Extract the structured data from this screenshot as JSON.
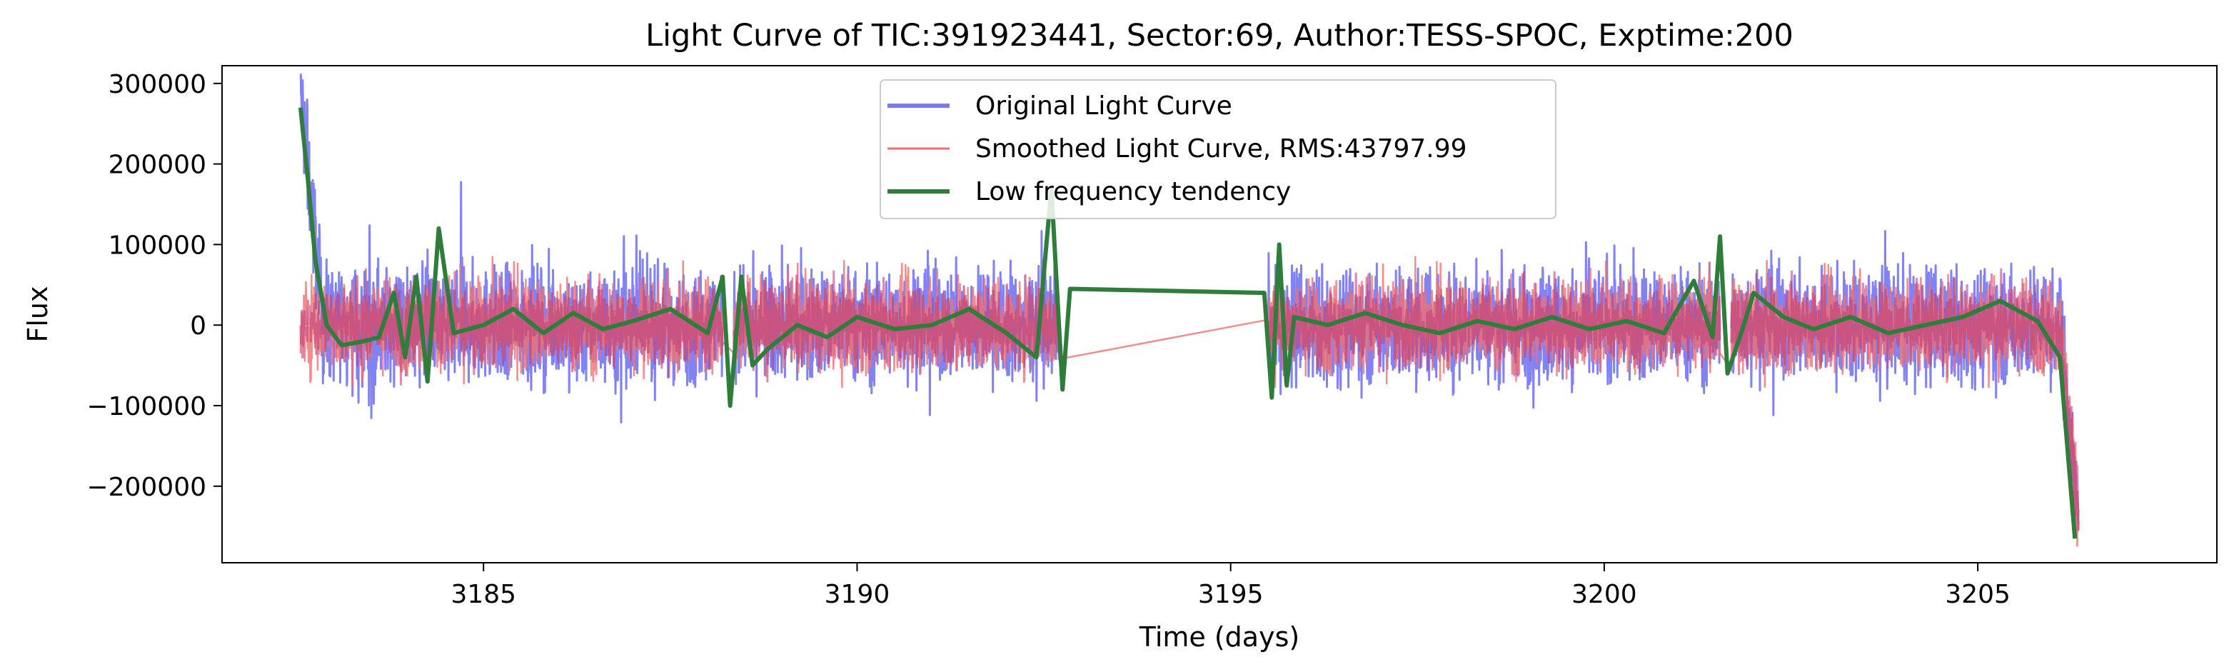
{
  "chart_data": {
    "type": "line",
    "title": "Light Curve of TIC:391923441, Sector:69, Author:TESS-SPOC, Exptime:200",
    "xlabel": "Time (days)",
    "ylabel": "Flux",
    "xlim": [
      3181.5,
      3208.2
    ],
    "ylim": [
      -295000,
      322000
    ],
    "x_ticks": [
      3185,
      3190,
      3195,
      3200,
      3205
    ],
    "x_tick_labels": [
      "3185",
      "3190",
      "3195",
      "3200",
      "3205"
    ],
    "y_ticks": [
      300000,
      200000,
      100000,
      0,
      -100000,
      -200000
    ],
    "y_tick_labels": [
      "300000",
      "200000",
      "100000",
      "0",
      "−100000",
      "−200000"
    ],
    "grid": false,
    "legend_position": "top-center",
    "segments": [
      {
        "start": 3182.55,
        "end": 3188.2
      },
      {
        "start": 3188.35,
        "end": 3192.7
      },
      {
        "start": 3195.5,
        "end": 3201.55
      },
      {
        "start": 3201.7,
        "end": 3206.35
      }
    ],
    "series": [
      {
        "name": "Original Light Curve",
        "color": "#7b7bf2",
        "style": "dense noisy line, alpha 0.5",
        "amplitude": 80000,
        "start_value": 290000,
        "end_value": -255000
      },
      {
        "name": "Smoothed Light Curve, RMS:43797.99",
        "color": "#f07070",
        "style": "thin line, alpha 0.5",
        "amplitude": 70000,
        "end_value": -240000
      },
      {
        "name": "Low frequency tendency",
        "color": "#2e7d3a",
        "style": "thick line",
        "points": [
          [
            3182.55,
            270000
          ],
          [
            3182.65,
            180000
          ],
          [
            3182.75,
            80000
          ],
          [
            3182.9,
            0
          ],
          [
            3183.1,
            -25000
          ],
          [
            3183.4,
            -20000
          ],
          [
            3183.6,
            -15000
          ],
          [
            3183.8,
            40000
          ],
          [
            3183.95,
            -40000
          ],
          [
            3184.1,
            60000
          ],
          [
            3184.25,
            -70000
          ],
          [
            3184.4,
            120000
          ],
          [
            3184.6,
            -10000
          ],
          [
            3185.0,
            0
          ],
          [
            3185.4,
            20000
          ],
          [
            3185.8,
            -10000
          ],
          [
            3186.2,
            15000
          ],
          [
            3186.6,
            -5000
          ],
          [
            3187.0,
            5000
          ],
          [
            3187.5,
            20000
          ],
          [
            3188.0,
            -10000
          ],
          [
            3188.2,
            60000
          ],
          [
            3188.3,
            -100000
          ],
          [
            3188.45,
            60000
          ],
          [
            3188.6,
            -50000
          ],
          [
            3188.8,
            -30000
          ],
          [
            3189.2,
            0
          ],
          [
            3189.6,
            -15000
          ],
          [
            3190.0,
            10000
          ],
          [
            3190.5,
            -5000
          ],
          [
            3191.0,
            0
          ],
          [
            3191.5,
            20000
          ],
          [
            3192.0,
            -10000
          ],
          [
            3192.4,
            -40000
          ],
          [
            3192.6,
            170000
          ],
          [
            3192.75,
            -80000
          ],
          [
            3192.85,
            45000
          ],
          [
            3195.45,
            40000
          ],
          [
            3195.55,
            -90000
          ],
          [
            3195.65,
            100000
          ],
          [
            3195.75,
            -75000
          ],
          [
            3195.85,
            10000
          ],
          [
            3196.3,
            0
          ],
          [
            3196.8,
            15000
          ],
          [
            3197.3,
            0
          ],
          [
            3197.8,
            -10000
          ],
          [
            3198.3,
            5000
          ],
          [
            3198.8,
            -5000
          ],
          [
            3199.3,
            10000
          ],
          [
            3199.8,
            -5000
          ],
          [
            3200.3,
            5000
          ],
          [
            3200.8,
            -10000
          ],
          [
            3201.2,
            55000
          ],
          [
            3201.45,
            -15000
          ],
          [
            3201.55,
            110000
          ],
          [
            3201.65,
            -60000
          ],
          [
            3201.85,
            -5000
          ],
          [
            3202.0,
            40000
          ],
          [
            3202.4,
            10000
          ],
          [
            3202.8,
            -5000
          ],
          [
            3203.3,
            10000
          ],
          [
            3203.8,
            -10000
          ],
          [
            3204.3,
            0
          ],
          [
            3204.8,
            10000
          ],
          [
            3205.3,
            30000
          ],
          [
            3205.8,
            5000
          ],
          [
            3206.1,
            -40000
          ],
          [
            3206.3,
            -265000
          ]
        ]
      }
    ]
  }
}
